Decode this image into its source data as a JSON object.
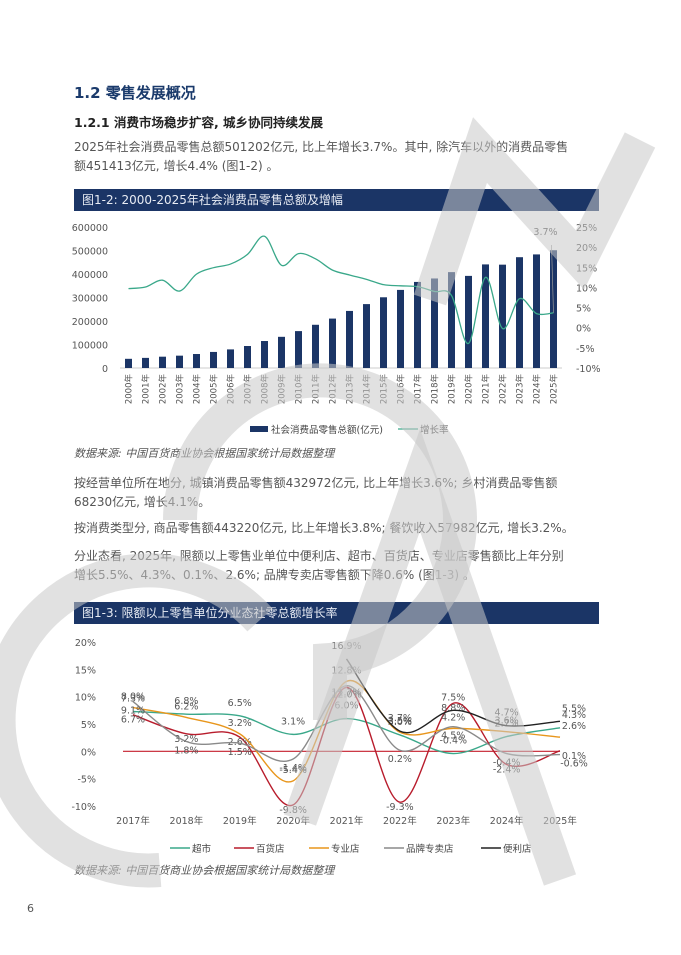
{
  "section": {
    "title": "1.2 零售发展概况",
    "subtitle": "1.2.1 消费市场稳步扩容, 城乡协同持续发展"
  },
  "paragraphs": {
    "p1_line1": "2025年社会消费品零售总额501202亿元, 比上年增长3.7%。其中, 除汽车以外的消费品零售",
    "p1_line2": "额451413亿元, 增长4.4% (图1-2) 。",
    "p2_line1": "按经营单位所在地分, 城镇消费品零售额432972亿元, 比上年增长3.6%; 乡村消费品零售额",
    "p2_line2": "68230亿元, 增长4.1%。",
    "p3_line1": "按消费类型分, 商品零售额443220亿元, 比上年增长3.8%; 餐饮收入57982亿元, 增长3.2%。",
    "p4_line1": "分业态看, 2025年, 限额以上零售业单位中便利店、超市、百货店、专业店零售额比上年分别",
    "p4_line2": "增长5.5%、4.3%、0.1%、2.6%; 品牌专卖店零售额下降0.6% (图1-3) 。"
  },
  "figures": {
    "fig1_title": "图1-2: 2000-2025年社会消费品零售总额及增幅",
    "fig2_title": "图1-3: 限额以上零售单位分业态社零总额增长率",
    "source": "数据来源: 中国百货商业协会根据国家统计局数据整理"
  },
  "page_number": "6",
  "watermark": "CGCA",
  "colors": {
    "header_bg": "#1b3566",
    "bar": "#1b3566",
    "growth_line": "#3aa88a",
    "supermarket": "#3aa88a",
    "department_store": "#b81c2c",
    "specialty_store": "#e8961c",
    "brand_store": "#8a8a8a",
    "convenience_store": "#222222"
  },
  "chart_data": [
    {
      "type": "bar",
      "title": "图1-2: 2000-2025年社会消费品零售总额及增幅",
      "categories": [
        "2000年",
        "2001年",
        "2002年",
        "2003年",
        "2004年",
        "2005年",
        "2006年",
        "2007年",
        "2008年",
        "2009年",
        "2010年",
        "2011年",
        "2012年",
        "2013年",
        "2014年",
        "2015年",
        "2016年",
        "2017年",
        "2018年",
        "2019年",
        "2020年",
        "2021年",
        "2022年",
        "2023年",
        "2024年",
        "2025年"
      ],
      "series": [
        {
          "name": "社会消费品零售总额(亿元)",
          "type": "bar",
          "axis": "left",
          "values": [
            39106,
            43055,
            48136,
            52516,
            59501,
            68353,
            79145,
            93572,
            114830,
            132678,
            156998,
            183919,
            210307,
            242843,
            271896,
            300931,
            332316,
            366262,
            380987,
            408017,
            391981,
            440823,
            439733,
            471495,
            483345,
            501202
          ]
        },
        {
          "name": "增长率",
          "type": "line",
          "axis": "right",
          "values": [
            9.7,
            10.1,
            11.8,
            9.1,
            13.3,
            14.9,
            15.8,
            18.2,
            22.7,
            15.5,
            18.4,
            17.1,
            14.3,
            13.1,
            12.0,
            10.7,
            10.4,
            10.2,
            9.0,
            8.0,
            -3.9,
            12.5,
            -0.2,
            7.2,
            3.5,
            3.7
          ]
        }
      ],
      "annotations": [
        {
          "x": "2025年",
          "label": "3.7%"
        }
      ],
      "ylim_left": [
        0,
        600000
      ],
      "yticks_left": [
        "600000",
        "500000",
        "400000",
        "300000",
        "200000",
        "100000",
        "0"
      ],
      "ylim_right": [
        -10,
        25
      ],
      "yticks_right": [
        "25%",
        "20%",
        "15%",
        "10%",
        "5%",
        "0%",
        "-5%",
        "-10%"
      ],
      "legend": [
        "社会消费品零售总额(亿元)",
        "增长率"
      ],
      "legend_position": "bottom",
      "grid": false
    },
    {
      "type": "line",
      "title": "图1-3: 限额以上零售单位分业态社零总额增长率",
      "categories": [
        "2017年",
        "2018年",
        "2019年",
        "2020年",
        "2021年",
        "2022年",
        "2023年",
        "2024年",
        "2025年"
      ],
      "series": [
        {
          "name": "超市",
          "values": [
            7.3,
            6.8,
            6.5,
            3.1,
            6.0,
            3.0,
            -0.4,
            2.7,
            4.3
          ]
        },
        {
          "name": "百货店",
          "values": [
            6.7,
            3.2,
            2.6,
            -9.8,
            11.7,
            -9.3,
            8.8,
            -2.4,
            0.1
          ]
        },
        {
          "name": "专业店",
          "values": [
            8.0,
            6.2,
            3.2,
            -5.4,
            12.8,
            3.5,
            4.2,
            3.6,
            2.6
          ]
        },
        {
          "name": "品牌专卖店",
          "values": [
            9.1,
            1.8,
            1.5,
            -1.4,
            12.0,
            0.2,
            4.5,
            -0.4,
            -0.6
          ]
        },
        {
          "name": "便利店",
          "values": [
            null,
            null,
            null,
            null,
            16.9,
            3.7,
            7.5,
            4.7,
            5.5
          ]
        }
      ],
      "ylim": [
        -10,
        20
      ],
      "yticks": [
        "20%",
        "15%",
        "10%",
        "5%",
        "0%",
        "-5%",
        "-10%"
      ],
      "legend": [
        "超市",
        "百货店",
        "专业店",
        "品牌专卖店",
        "便利店"
      ],
      "legend_position": "bottom",
      "grid": false
    }
  ]
}
